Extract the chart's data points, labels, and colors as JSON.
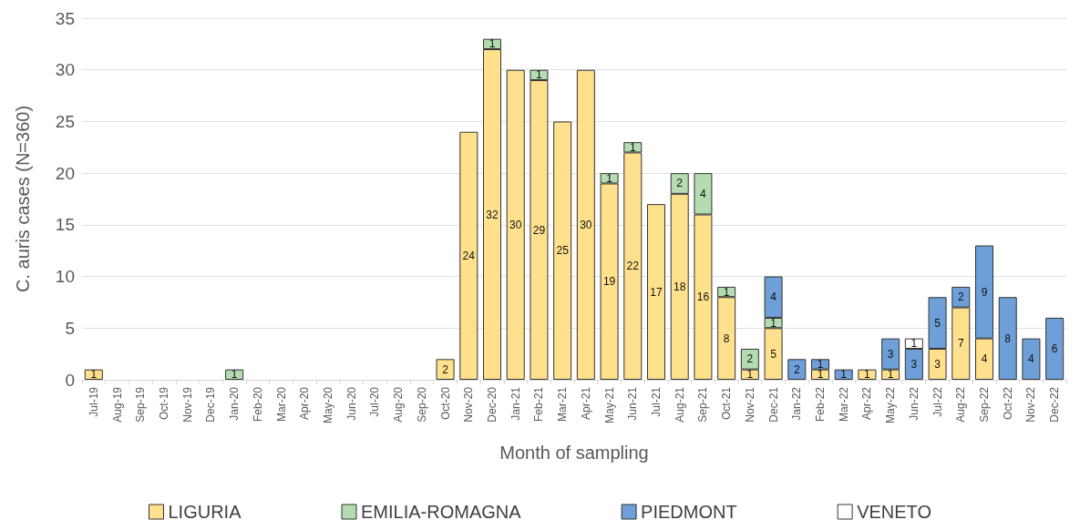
{
  "chart_data": {
    "type": "bar",
    "stacked": true,
    "xlabel": "Month of sampling",
    "ylabel": "C. auris cases (N=360)",
    "categories": [
      "Jul-19",
      "Aug-19",
      "Sep-19",
      "Oct-19",
      "Nov-19",
      "Dec-19",
      "Jan-20",
      "Feb-20",
      "Mar-20",
      "Apr-20",
      "May-20",
      "Jun-20",
      "Jul-20",
      "Aug-20",
      "Sep-20",
      "Oct-20",
      "Nov-20",
      "Dec-20",
      "Jan-21",
      "Feb-21",
      "Mar-21",
      "Apr-21",
      "May-21",
      "Jun-21",
      "Jul-21",
      "Aug-21",
      "Sep-21",
      "Oct-21",
      "Nov-21",
      "Dec-21",
      "Jan-22",
      "Feb-22",
      "Mar-22",
      "Apr-22",
      "May-22",
      "Jun-22",
      "Jul-22",
      "Aug-22",
      "Sep-22",
      "Oct-22",
      "Nov-22",
      "Dec-22"
    ],
    "series": [
      {
        "name": "LIGURIA",
        "color": "#ffe08c",
        "values": [
          1,
          null,
          null,
          null,
          null,
          null,
          null,
          null,
          null,
          null,
          null,
          null,
          null,
          null,
          null,
          2,
          24,
          32,
          30,
          29,
          25,
          30,
          19,
          22,
          17,
          18,
          16,
          8,
          1,
          5,
          null,
          1,
          null,
          1,
          1,
          null,
          3,
          7,
          4,
          null,
          null,
          null
        ]
      },
      {
        "name": "EMILIA-ROMAGNA",
        "color": "#b4dcb0",
        "values": [
          null,
          null,
          null,
          null,
          null,
          null,
          1,
          null,
          null,
          null,
          null,
          null,
          null,
          null,
          null,
          null,
          null,
          1,
          null,
          1,
          null,
          null,
          1,
          1,
          null,
          2,
          4,
          1,
          2,
          1,
          null,
          null,
          null,
          null,
          null,
          null,
          null,
          null,
          null,
          null,
          null,
          null
        ]
      },
      {
        "name": "PIEDMONT",
        "color": "#6f9fd8",
        "values": [
          null,
          null,
          null,
          null,
          null,
          null,
          null,
          null,
          null,
          null,
          null,
          null,
          null,
          null,
          null,
          null,
          null,
          null,
          null,
          null,
          null,
          null,
          null,
          null,
          null,
          null,
          null,
          null,
          null,
          4,
          2,
          1,
          1,
          null,
          3,
          3,
          5,
          2,
          9,
          8,
          4,
          6
        ]
      },
      {
        "name": "VENETO",
        "color": "#ffffff",
        "values": [
          null,
          null,
          null,
          null,
          null,
          null,
          null,
          null,
          null,
          null,
          null,
          null,
          null,
          null,
          null,
          null,
          null,
          null,
          null,
          null,
          null,
          null,
          null,
          null,
          null,
          null,
          null,
          null,
          null,
          null,
          null,
          null,
          null,
          null,
          null,
          1,
          null,
          null,
          null,
          null,
          null,
          null
        ]
      }
    ],
    "ylim": [
      0,
      35
    ],
    "yticks": [
      0,
      5,
      10,
      15,
      20,
      25,
      30,
      35
    ],
    "grid": "y",
    "legend": "bottom",
    "data_labels": true
  }
}
